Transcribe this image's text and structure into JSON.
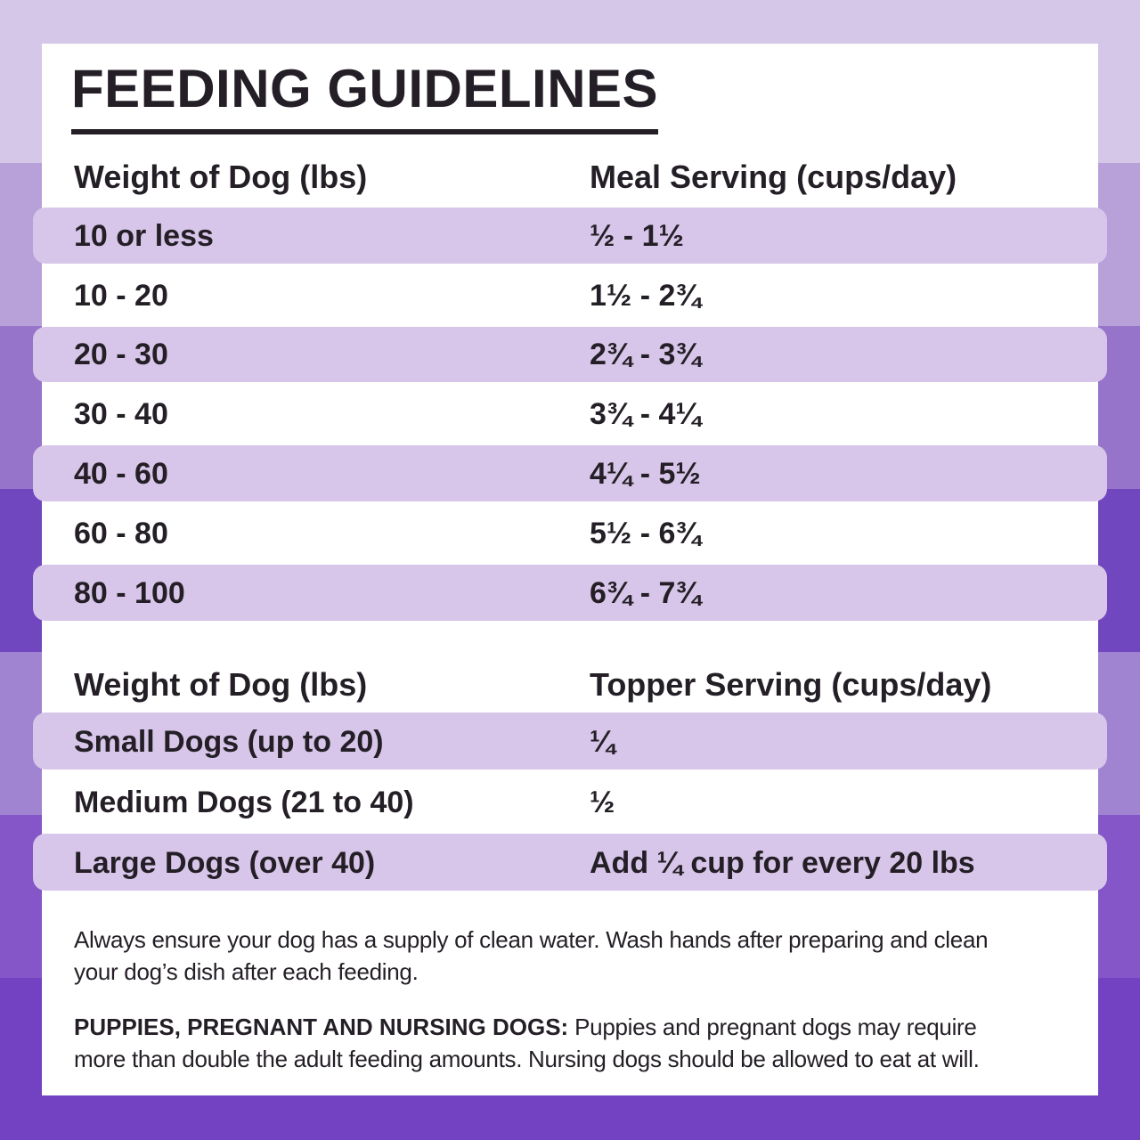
{
  "title": "FEEDING GUIDELINES",
  "meal_table": {
    "weight_header": "Weight of Dog (lbs)",
    "serving_header": "Meal Serving (cups/day)",
    "rows": [
      {
        "weight": "10 or less",
        "serving": "½ - 1½"
      },
      {
        "weight": "10 - 20",
        "serving": "1½ - 2¾"
      },
      {
        "weight": "20 - 30",
        "serving": "2¾ - 3¾"
      },
      {
        "weight": "30 - 40",
        "serving": "3¾ - 4¼"
      },
      {
        "weight": "40 - 60",
        "serving": "4¼ - 5½"
      },
      {
        "weight": "60 - 80",
        "serving": "5½ - 6¾"
      },
      {
        "weight": "80 - 100",
        "serving": "6¾ - 7¾"
      }
    ]
  },
  "topper_table": {
    "weight_header": "Weight of Dog (lbs)",
    "serving_header": "Topper Serving (cups/day)",
    "rows": [
      {
        "weight": "Small Dogs (up to 20)",
        "serving": "¼"
      },
      {
        "weight": "Medium Dogs (21 to 40)",
        "serving": "½"
      },
      {
        "weight": "Large Dogs (over 40)",
        "serving": "Add ¼ cup for every 20 lbs"
      }
    ]
  },
  "footer": {
    "note1_line1": "Always ensure your dog has a supply of clean water. Wash hands after preparing and clean",
    "note1_line2": "your dog’s dish after each feeding.",
    "note2_label": "PUPPIES, PREGNANT AND NURSING DOGS:",
    "note2_line1_rest": " Puppies and pregnant dogs may require",
    "note2_line2": "more than double the adult feeding amounts. Nursing dogs should be allowed to eat at will."
  },
  "colors": {
    "stripe_1": "#d4c7e8",
    "stripe_2": "#b8a1d9",
    "stripe_3": "#9674ca",
    "stripe_4": "#7147c0",
    "stripe_5": "#a084d2",
    "stripe_6": "#8456c8",
    "stripe_7": "#7242c3",
    "row_band": "#d7c6e9",
    "card": "#ffffff",
    "text": "#241f26"
  }
}
